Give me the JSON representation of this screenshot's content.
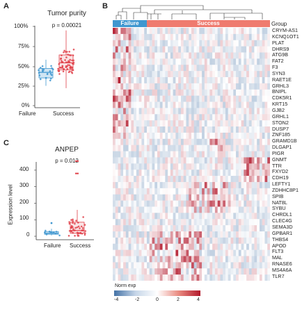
{
  "panels": {
    "A": {
      "letter": "A",
      "title": "Tumor purity",
      "pvalue": "p = 0.00021",
      "y_ticks": [
        "100%",
        "75%",
        "50%",
        "25%",
        "0%"
      ],
      "categories": [
        "Failure",
        "Success"
      ]
    },
    "B": {
      "letter": "B",
      "group_label": "Group",
      "groups": [
        {
          "name": "Failure",
          "n": 8,
          "color": "#3f97d0"
        },
        {
          "name": "Success",
          "n": 52,
          "color": "#ef7b6f"
        }
      ],
      "genes": [
        "CRYM-AS1",
        "KCNQ1OT1",
        "PLAT",
        "DHRS9",
        "ATG9B",
        "FAT2",
        "F3",
        "SYN3",
        "RAET1E",
        "GRHL3",
        "BNIPL",
        "CDK5R1",
        "KRT15",
        "GJB2",
        "GRHL1",
        "STON2",
        "DUSP7",
        "ZNF185",
        "GRAMD1B",
        "DLGAP1",
        "PIGR",
        "GNMT",
        "TTR",
        "FXYD2",
        "CDH19",
        "LEFTY1",
        "ZDHHC8P1",
        "SPIB",
        "NAT8L",
        "SYBU",
        "CHRDL1",
        "CLEC4G",
        "SEMA3D",
        "GPBAR1",
        "THBS4",
        "APOD",
        "FLT3",
        "MAL",
        "RNASE6",
        "MS4A6A",
        "TLR7"
      ],
      "legend": {
        "title": "Norm exp",
        "ticks": [
          "-4",
          "-2",
          "0",
          "2",
          "4"
        ],
        "low_color": "#4472a6",
        "mid_color": "#ffffff",
        "high_color": "#b2182b"
      }
    },
    "C": {
      "letter": "C",
      "title": "ANPEP",
      "pvalue": "p = 0.012",
      "ylabel": "Expression level",
      "y_ticks": [
        "400",
        "300",
        "200",
        "100",
        "0"
      ],
      "categories": [
        "Failure",
        "Success"
      ]
    }
  },
  "chart_data": [
    {
      "type": "box",
      "title": "Tumor purity",
      "categories": [
        "Failure",
        "Success"
      ],
      "ylim": [
        0,
        1
      ],
      "colors": {
        "Failure": "#3f97d0",
        "Success": "#e0414a"
      },
      "boxes": [
        {
          "name": "Failure",
          "min": 0.25,
          "q1": 0.35,
          "median": 0.42,
          "q3": 0.47,
          "max": 0.58
        },
        {
          "name": "Success",
          "min": 0.22,
          "q1": 0.45,
          "median": 0.54,
          "q3": 0.64,
          "max": 0.95
        }
      ]
    },
    {
      "type": "heatmap",
      "rows": 41,
      "columns": 60,
      "groups": {
        "Failure": 8,
        "Success": 52
      },
      "value_range": [
        -4,
        4
      ]
    },
    {
      "type": "box",
      "title": "ANPEP",
      "categories": [
        "Failure",
        "Success"
      ],
      "ylim": [
        0,
        450
      ],
      "colors": {
        "Failure": "#3f97d0",
        "Success": "#e0414a"
      },
      "boxes": [
        {
          "name": "Failure",
          "min": 5,
          "q1": 12,
          "median": 18,
          "q3": 28,
          "max": 45
        },
        {
          "name": "Success",
          "min": 3,
          "q1": 18,
          "median": 35,
          "q3": 85,
          "max": 160
        }
      ],
      "outliers": {
        "Failure": [
          80
        ],
        "Success": [
          380,
          455
        ]
      }
    }
  ]
}
